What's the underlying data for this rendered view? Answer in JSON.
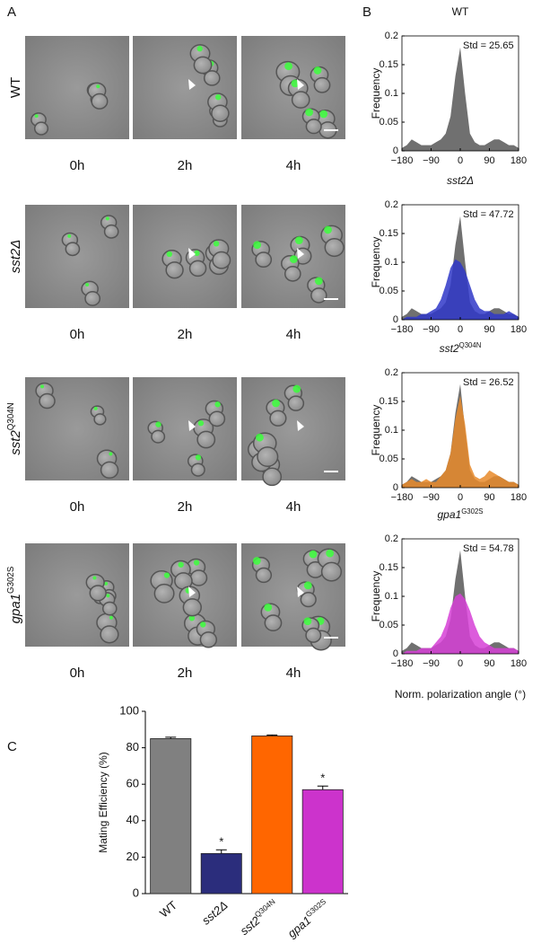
{
  "panel_labels": [
    "A",
    "B",
    "C"
  ],
  "panel_a": {
    "strain_labels": [
      {
        "name": "WT"
      },
      {
        "name": "sst2Δ"
      },
      {
        "name": "sst2",
        "superscript": "Q304N"
      },
      {
        "name": "gpa1",
        "superscript": "G302S"
      }
    ],
    "time_labels": [
      "0h",
      "2h",
      "4h"
    ]
  },
  "panel_b_xlabel": "Norm. polarization angle (°)",
  "chart_data": [
    {
      "type": "area",
      "title": "WT",
      "ylabel": "Frequency",
      "annotation": "Std = 25.65",
      "x": [
        -180,
        -165,
        -150,
        -135,
        -120,
        -105,
        -90,
        -75,
        -60,
        -45,
        -30,
        -15,
        0,
        15,
        30,
        45,
        60,
        75,
        90,
        105,
        120,
        135,
        150,
        165,
        180
      ],
      "series": [
        {
          "color": "#707070",
          "values": [
            0.005,
            0.01,
            0.02,
            0.015,
            0.01,
            0.01,
            0.01,
            0.015,
            0.02,
            0.03,
            0.06,
            0.13,
            0.18,
            0.1,
            0.03,
            0.015,
            0.01,
            0.01,
            0.015,
            0.02,
            0.02,
            0.015,
            0.01,
            0.01,
            0.005
          ]
        }
      ],
      "xlim": [
        -180,
        180
      ],
      "xticks": [
        {
          "value": -180,
          "label": "−180"
        },
        {
          "value": -90,
          "label": "−90"
        },
        0,
        90,
        180
      ],
      "ylim": [
        0,
        0.2
      ],
      "yticks": [
        0,
        0.05,
        0.1,
        0.15,
        0.2
      ]
    },
    {
      "type": "area",
      "title": "sst2Δ",
      "ylabel": "Frequency",
      "annotation": "Std = 47.72",
      "x": [
        -180,
        -165,
        -150,
        -135,
        -120,
        -105,
        -90,
        -75,
        -60,
        -45,
        -30,
        -15,
        0,
        15,
        30,
        45,
        60,
        75,
        90,
        105,
        120,
        135,
        150,
        165,
        180
      ],
      "series": [
        {
          "color": "#707070",
          "values": [
            0.005,
            0.01,
            0.02,
            0.015,
            0.01,
            0.01,
            0.01,
            0.015,
            0.02,
            0.03,
            0.06,
            0.13,
            0.18,
            0.1,
            0.03,
            0.015,
            0.01,
            0.01,
            0.015,
            0.02,
            0.02,
            0.015,
            0.01,
            0.01,
            0.005
          ]
        },
        {
          "color": "#2f37c8",
          "values": [
            0,
            0.005,
            0.005,
            0.005,
            0.01,
            0.01,
            0.015,
            0.02,
            0.035,
            0.06,
            0.09,
            0.105,
            0.1,
            0.085,
            0.06,
            0.035,
            0.02,
            0.015,
            0.015,
            0.01,
            0.01,
            0.01,
            0.015,
            0.01,
            0.005
          ]
        }
      ],
      "xlim": [
        -180,
        180
      ],
      "xticks": [
        {
          "value": -180,
          "label": "−180"
        },
        {
          "value": -90,
          "label": "−90"
        },
        0,
        90,
        180
      ],
      "ylim": [
        0,
        0.2
      ],
      "yticks": [
        0,
        0.05,
        0.1,
        0.15,
        0.2
      ]
    },
    {
      "type": "area",
      "title": "sst2",
      "title_superscript": "Q304N",
      "ylabel": "Frequency",
      "annotation": "Std = 26.52",
      "x": [
        -180,
        -165,
        -150,
        -135,
        -120,
        -105,
        -90,
        -75,
        -60,
        -45,
        -30,
        -15,
        0,
        15,
        30,
        45,
        60,
        75,
        90,
        105,
        120,
        135,
        150,
        165,
        180
      ],
      "series": [
        {
          "color": "#707070",
          "values": [
            0.005,
            0.01,
            0.02,
            0.015,
            0.01,
            0.01,
            0.01,
            0.015,
            0.02,
            0.03,
            0.06,
            0.13,
            0.18,
            0.1,
            0.03,
            0.015,
            0.01,
            0.01,
            0.015,
            0.02,
            0.02,
            0.015,
            0.01,
            0.01,
            0.005
          ]
        },
        {
          "color": "#e88a2a",
          "values": [
            0.005,
            0.01,
            0.015,
            0.01,
            0.01,
            0.015,
            0.01,
            0.01,
            0.02,
            0.03,
            0.06,
            0.12,
            0.16,
            0.11,
            0.04,
            0.02,
            0.015,
            0.02,
            0.03,
            0.025,
            0.02,
            0.015,
            0.01,
            0.01,
            0.005
          ]
        }
      ],
      "xlim": [
        -180,
        180
      ],
      "xticks": [
        {
          "value": -180,
          "label": "−180"
        },
        {
          "value": -90,
          "label": "−90"
        },
        0,
        90,
        180
      ],
      "ylim": [
        0,
        0.2
      ],
      "yticks": [
        0,
        0.05,
        0.1,
        0.15,
        0.2
      ]
    },
    {
      "type": "area",
      "title": "gpa1",
      "title_superscript": "G302S",
      "ylabel": "Frequency",
      "annotation": "Std = 54.78",
      "x": [
        -180,
        -165,
        -150,
        -135,
        -120,
        -105,
        -90,
        -75,
        -60,
        -45,
        -30,
        -15,
        0,
        15,
        30,
        45,
        60,
        75,
        90,
        105,
        120,
        135,
        150,
        165,
        180
      ],
      "series": [
        {
          "color": "#707070",
          "values": [
            0.005,
            0.01,
            0.02,
            0.015,
            0.01,
            0.01,
            0.01,
            0.015,
            0.02,
            0.03,
            0.06,
            0.13,
            0.18,
            0.1,
            0.03,
            0.015,
            0.01,
            0.01,
            0.015,
            0.02,
            0.02,
            0.015,
            0.01,
            0.01,
            0.005
          ]
        },
        {
          "color": "#d63fd6",
          "values": [
            0,
            0.005,
            0.005,
            0.005,
            0.01,
            0.01,
            0.01,
            0.02,
            0.03,
            0.05,
            0.08,
            0.1,
            0.105,
            0.095,
            0.075,
            0.05,
            0.03,
            0.02,
            0.015,
            0.01,
            0.01,
            0.01,
            0.01,
            0.01,
            0.005
          ]
        }
      ],
      "xlim": [
        -180,
        180
      ],
      "xticks": [
        {
          "value": -180,
          "label": "−180"
        },
        {
          "value": -90,
          "label": "−90"
        },
        0,
        90,
        180
      ],
      "ylim": [
        0,
        0.2
      ],
      "yticks": [
        0,
        0.05,
        0.1,
        0.15,
        0.2
      ]
    },
    {
      "type": "bar",
      "ylabel": "Mating Efficiency (%)",
      "categories": [
        "WT",
        "sst2Δ",
        "sst2",
        "gpa1"
      ],
      "category_superscripts": [
        null,
        null,
        "Q304N",
        "G302S"
      ],
      "values": [
        85,
        22,
        86.5,
        57
      ],
      "errors": [
        0.8,
        2,
        0.5,
        2
      ],
      "colors": [
        "#808080",
        "#2b2d7c",
        "#ff6600",
        "#cc33cc"
      ],
      "annotations": [
        null,
        "*",
        null,
        "*"
      ],
      "ylim": [
        0,
        100
      ],
      "yticks": [
        0,
        20,
        40,
        60,
        80,
        100
      ]
    }
  ]
}
